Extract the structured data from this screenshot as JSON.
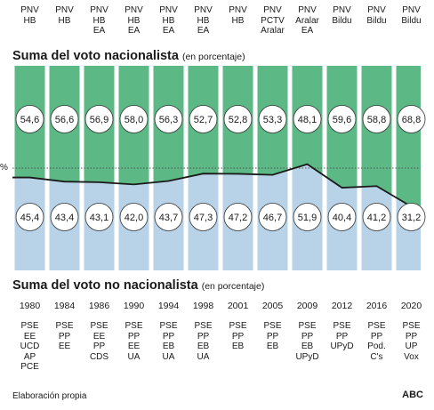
{
  "titles": {
    "top_main": "Suma del voto nacionalista",
    "top_sub": "(en porcentaje)",
    "bottom_main": "Suma del voto no nacionalista",
    "bottom_sub": "(en porcentaje)"
  },
  "axis_symbol": "%",
  "footer": {
    "source": "Elaboración propia",
    "brand": "ABC"
  },
  "colors": {
    "nationalist": "#5cb885",
    "non_nationalist": "#b8d3e7",
    "line": "#1a1a1a"
  },
  "years": [
    "1980",
    "1984",
    "1986",
    "1990",
    "1994",
    "1998",
    "2001",
    "2005",
    "2009",
    "2012",
    "2016",
    "2020"
  ],
  "nationalist_parties": [
    "PNV\nHB",
    "PNV\nHB",
    "PNV\nHB\nEA",
    "PNV\nHB\nEA",
    "PNV\nHB\nEA",
    "PNV\nHB\nEA",
    "PNV\nHB",
    "PNV\nPCTV\nAralar",
    "PNV\nAralar\nEA",
    "PNV\nBildu",
    "PNV\nBildu",
    "PNV\nBildu"
  ],
  "non_nationalist_parties": [
    "PSE\nEE\nUCD\nAP\nPCE",
    "PSE\nPP\nEE",
    "PSE\nEE\nPP\nCDS",
    "PSE\nPP\nEE\nUA",
    "PSE\nPP\nEB\nUA",
    "PSE\nPP\nEB\nUA",
    "PSE\nPP\nEB",
    "PSE\nPP\nEB",
    "PSE\nPP\nEB\nUPyD",
    "PSE\nPP\nUPyD",
    "PSE\nPP\nPod.\nC's",
    "PSE\nPP\nUP\nVox"
  ],
  "chart_data": {
    "type": "area",
    "title": "Suma del voto nacionalista",
    "categories": [
      "1980",
      "1984",
      "1986",
      "1990",
      "1994",
      "1998",
      "2001",
      "2005",
      "2009",
      "2012",
      "2016",
      "2020"
    ],
    "ylim": [
      0,
      100
    ],
    "series": [
      {
        "name": "Suma del voto nacionalista",
        "values": [
          54.6,
          56.6,
          56.9,
          58.0,
          56.3,
          52.7,
          52.8,
          53.3,
          48.1,
          59.6,
          58.8,
          68.8
        ]
      },
      {
        "name": "Suma del voto no nacionalista",
        "values": [
          45.4,
          43.4,
          43.1,
          42.0,
          43.7,
          47.3,
          47.2,
          46.7,
          51.9,
          40.4,
          41.2,
          31.2
        ]
      }
    ],
    "value_labels": {
      "nationalist": [
        "54,6",
        "56,6",
        "56,9",
        "58,0",
        "56,3",
        "52,7",
        "52,8",
        "53,3",
        "48,1",
        "59,6",
        "58,8",
        "68,8"
      ],
      "non_nationalist": [
        "45,4",
        "43,4",
        "43,1",
        "42,0",
        "43,7",
        "47,3",
        "47,2",
        "46,7",
        "51,9",
        "40,4",
        "41,2",
        "31,2"
      ]
    },
    "reference_line": 50
  }
}
